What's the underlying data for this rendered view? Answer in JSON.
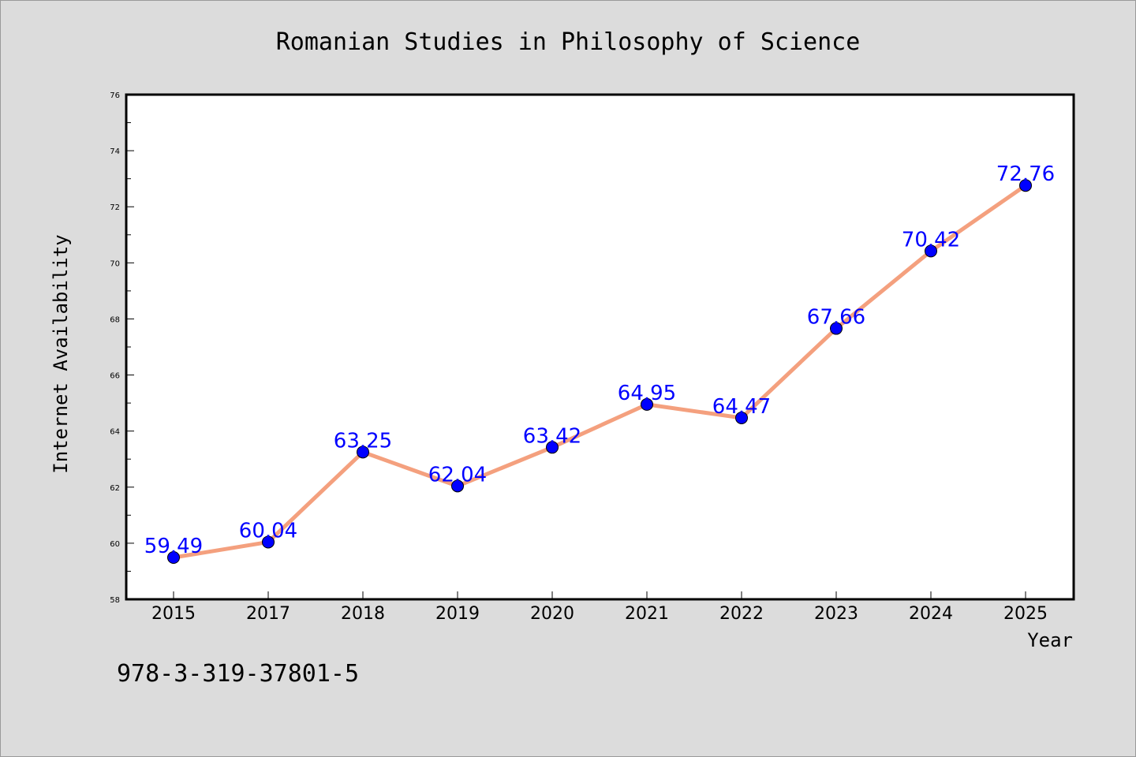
{
  "chart_data": {
    "type": "line",
    "title": "Romanian Studies in Philosophy of Science",
    "xlabel": "Year",
    "ylabel": "Internet Availability",
    "categories": [
      "2015",
      "2017",
      "2018",
      "2019",
      "2020",
      "2021",
      "2022",
      "2023",
      "2024",
      "2025"
    ],
    "series": [
      {
        "values": [
          59.49,
          60.04,
          63.25,
          62.04,
          63.42,
          64.95,
          64.47,
          67.66,
          70.42,
          72.76
        ],
        "line_color": "#f4a07e",
        "marker_color": "#0000ff"
      }
    ],
    "data_labels": [
      "59.49",
      "60.04",
      "63.25",
      "62.04",
      "63.42",
      "64.95",
      "64.47",
      "67.66",
      "70.42",
      "72.76"
    ],
    "ylim": [
      58,
      76
    ],
    "yticks": [
      "58",
      "60",
      "62",
      "64",
      "66",
      "68",
      "70",
      "72",
      "74",
      "76"
    ],
    "grid": false,
    "legend": "none"
  },
  "annotation": "978-3-319-37801-5",
  "colors": {
    "background": "#dcdcdc",
    "plot_background": "#ffffff",
    "label_color": "#0000ff"
  }
}
